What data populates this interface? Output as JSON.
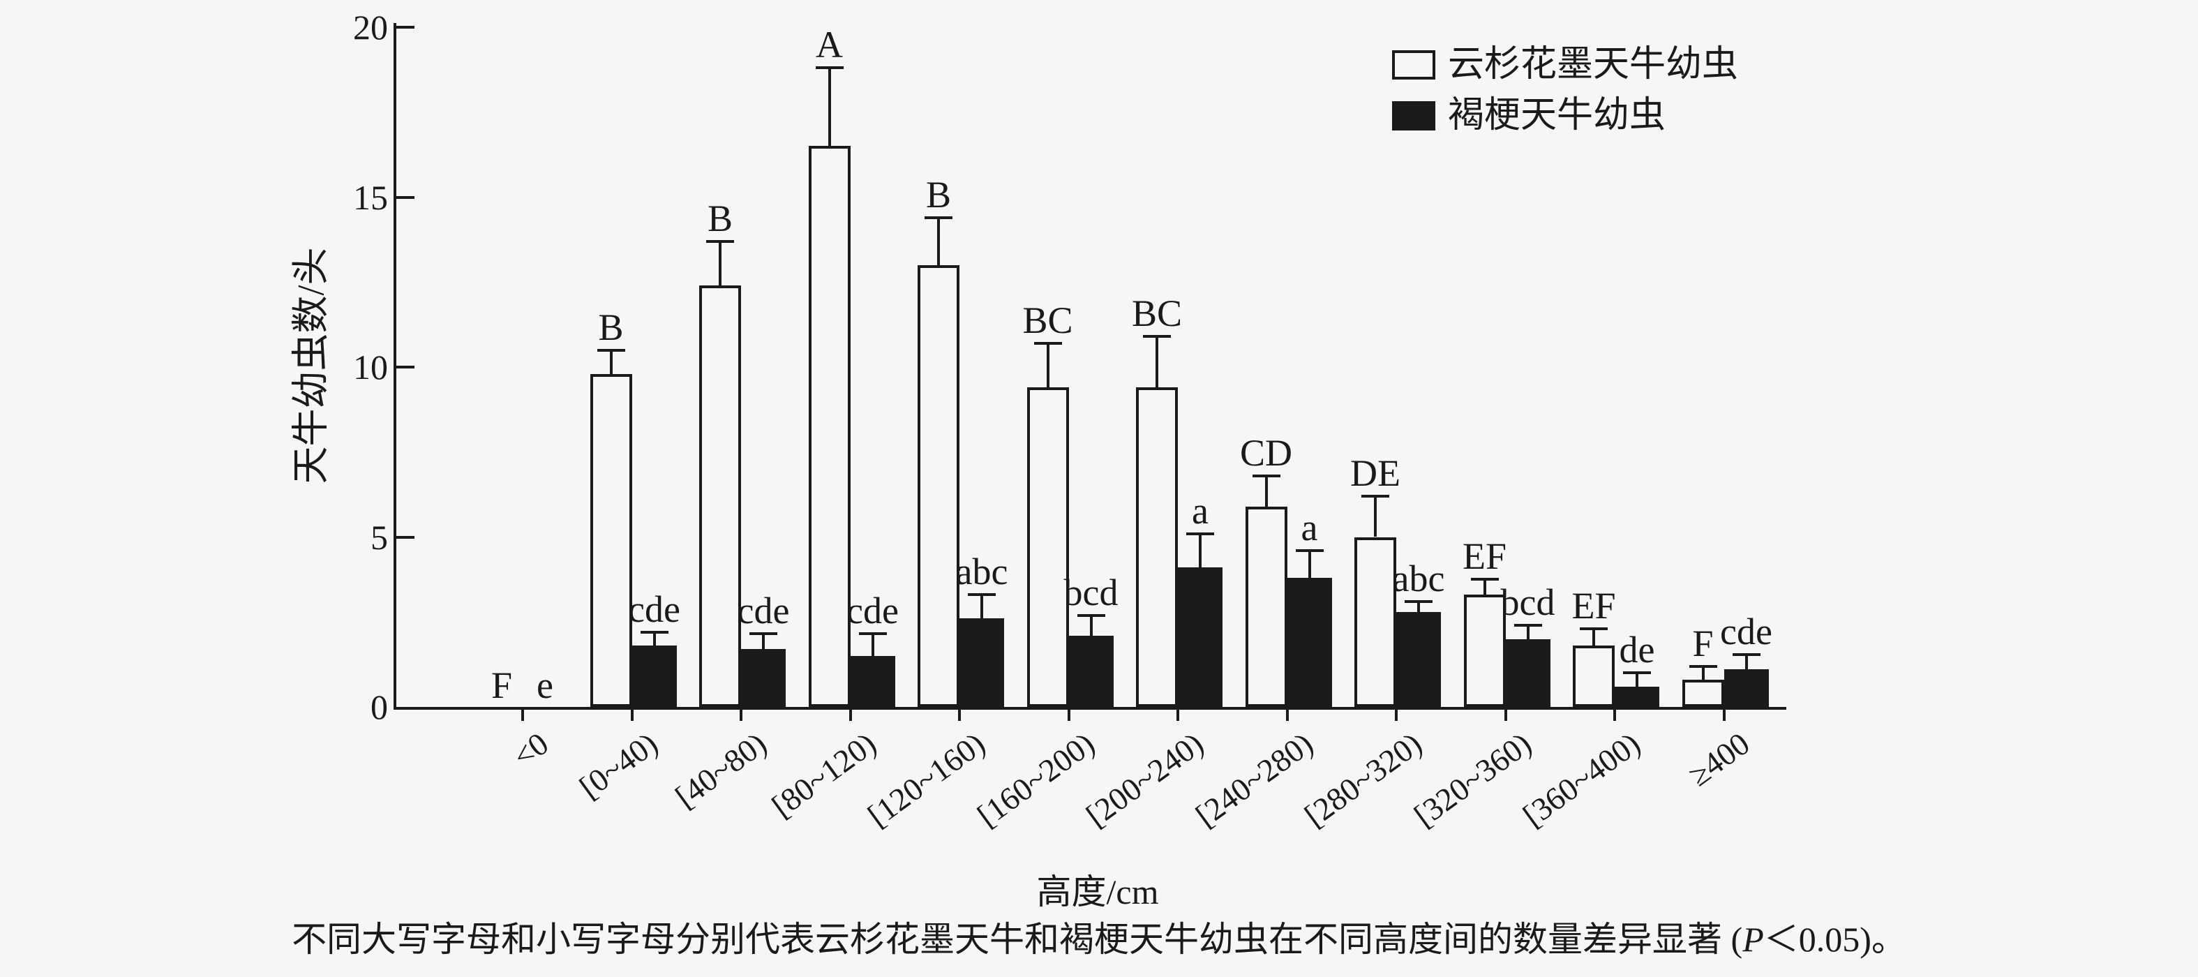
{
  "axes": {
    "y_title": "天牛幼虫数/头",
    "x_title": "高度/cm",
    "y_ticks": [
      0,
      5,
      10,
      15,
      20
    ],
    "y_max": 20
  },
  "caption": {
    "prefix": "不同大写字母和小写字母分别代表云杉花墨天牛和褐梗天牛幼虫在不同高度间的数量差异显著 (",
    "p_italic": "P",
    "suffix": "＜0.05)。"
  },
  "colors": {
    "ink": "#1a1a1a",
    "background": "#f6f6f6",
    "bar_fill_series2": "#1b1b1b"
  },
  "chart_data": {
    "type": "bar",
    "title": "",
    "xlabel": "高度/cm",
    "ylabel": "天牛幼虫数/头",
    "ylim": [
      0,
      20
    ],
    "grid": false,
    "error_bars": true,
    "legend_position": "top-right",
    "categories": [
      "<0",
      "[0~40)",
      "[40~80)",
      "[80~120)",
      "[120~160)",
      "[160~200)",
      "[200~240)",
      "[240~280)",
      "[280~320)",
      "[320~360)",
      "[360~400)",
      "≥400"
    ],
    "series": [
      {
        "name": "云杉花墨天牛幼虫",
        "color": "#ffffff",
        "values": [
          0,
          9.8,
          12.4,
          16.5,
          13.0,
          9.4,
          9.4,
          5.9,
          5.0,
          3.3,
          1.8,
          0.8
        ],
        "errors": [
          0,
          0.7,
          1.3,
          2.3,
          1.4,
          1.3,
          1.5,
          0.9,
          1.2,
          0.45,
          0.5,
          0.4
        ],
        "sig_letters": [
          "F",
          "B",
          "B",
          "A",
          "B",
          "BC",
          "BC",
          "CD",
          "DE",
          "EF",
          "EF",
          "F"
        ]
      },
      {
        "name": "褐梗天牛幼虫",
        "color": "#1b1b1b",
        "values": [
          0,
          1.8,
          1.7,
          1.5,
          2.6,
          2.1,
          4.1,
          3.8,
          2.8,
          2.0,
          0.6,
          1.1
        ],
        "errors": [
          0,
          0.4,
          0.45,
          0.65,
          0.7,
          0.6,
          1.0,
          0.8,
          0.3,
          0.4,
          0.4,
          0.45
        ],
        "sig_letters": [
          "e",
          "cde",
          "cde",
          "cde",
          "abc",
          "bcd",
          "a",
          "a",
          "abc",
          "bcd",
          "de",
          "cde"
        ]
      }
    ]
  }
}
